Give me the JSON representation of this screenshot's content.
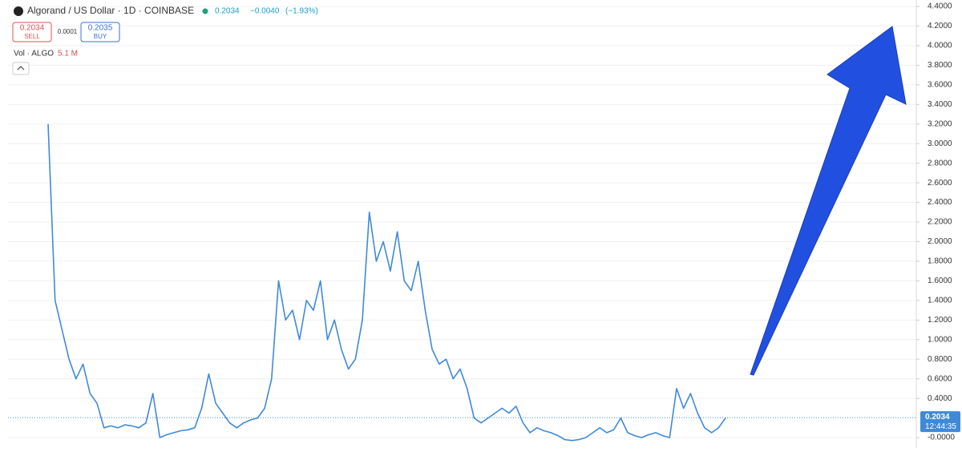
{
  "header": {
    "symbol": "Algorand / US Dollar · 1D · COINBASE",
    "price": "0.2034",
    "change": "−0.0040",
    "change_pct": "(−1.93%)",
    "sell_price": "0.2034",
    "sell_label": "SELL",
    "spread": "0.0001",
    "buy_price": "0.2035",
    "buy_label": "BUY",
    "volume_label": "Vol · ALGO",
    "volume_value": "5.1 M"
  },
  "chart_data": {
    "type": "line",
    "color": "#3f8ad8",
    "values": [
      3.2,
      1.4,
      1.1,
      0.8,
      0.6,
      0.75,
      0.45,
      0.35,
      0.1,
      0.12,
      0.1,
      0.13,
      0.12,
      0.1,
      0.15,
      0.45,
      0.0,
      0.03,
      0.05,
      0.07,
      0.08,
      0.1,
      0.3,
      0.65,
      0.35,
      0.25,
      0.15,
      0.1,
      0.15,
      0.18,
      0.2,
      0.3,
      0.6,
      1.6,
      1.2,
      1.3,
      1.0,
      1.4,
      1.3,
      1.6,
      1.0,
      1.2,
      0.9,
      0.7,
      0.8,
      1.2,
      2.3,
      1.8,
      2.0,
      1.7,
      2.1,
      1.6,
      1.5,
      1.8,
      1.3,
      0.9,
      0.75,
      0.8,
      0.6,
      0.7,
      0.5,
      0.2,
      0.15,
      0.2,
      0.25,
      0.3,
      0.25,
      0.32,
      0.15,
      0.05,
      0.1,
      0.07,
      0.05,
      0.02,
      -0.02,
      -0.03,
      -0.02,
      0.0,
      0.05,
      0.1,
      0.05,
      0.08,
      0.2,
      0.05,
      0.02,
      0.0,
      0.03,
      0.05,
      0.02,
      0.0,
      0.5,
      0.3,
      0.45,
      0.25,
      0.1,
      0.05,
      0.1,
      0.2
    ],
    "ylim": [
      -0.106,
      4.466
    ],
    "yticks": [
      {
        "value": 0,
        "label": "-0.0000"
      },
      {
        "value": 0.4,
        "label": "0.4000"
      },
      {
        "value": 0.6,
        "label": "0.6000"
      },
      {
        "value": 0.8,
        "label": "0.8000"
      },
      {
        "value": 1,
        "label": "1.0000"
      },
      {
        "value": 1.2,
        "label": "1.2000"
      },
      {
        "value": 1.4,
        "label": "1.4000"
      },
      {
        "value": 1.6,
        "label": "1.6000"
      },
      {
        "value": 1.8,
        "label": "1.8000"
      },
      {
        "value": 2,
        "label": "2.0000"
      },
      {
        "value": 2.2,
        "label": "2.2000"
      },
      {
        "value": 2.4,
        "label": "2.4000"
      },
      {
        "value": 2.6,
        "label": "2.6000"
      },
      {
        "value": 2.8,
        "label": "2.8000"
      },
      {
        "value": 3,
        "label": "3.0000"
      },
      {
        "value": 3.2,
        "label": "3.2000"
      },
      {
        "value": 3.4,
        "label": "3.4000"
      },
      {
        "value": 3.6,
        "label": "3.6000"
      },
      {
        "value": 3.8,
        "label": "3.8000"
      },
      {
        "value": 4,
        "label": "4.0000"
      },
      {
        "value": 4.2,
        "label": "4.2000"
      },
      {
        "value": 4.4,
        "label": "4.4000"
      }
    ],
    "grid": true,
    "last_value": 0.2034,
    "countdown": "12:44:35"
  }
}
